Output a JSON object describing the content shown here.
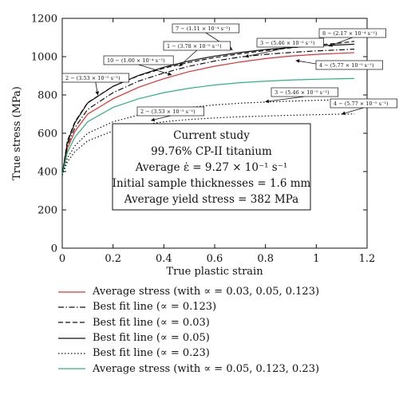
{
  "chart_data": {
    "type": "line",
    "xlabel": "True plastic strain",
    "ylabel": "True stress (MPa)",
    "xlim": [
      0,
      1.2
    ],
    "ylim": [
      0,
      1200
    ],
    "xticks": [
      "0",
      "0.2",
      "0.4",
      "0.6",
      "0.8",
      "1",
      "1.2"
    ],
    "yticks": [
      "0",
      "200",
      "400",
      "600",
      "800",
      "1000",
      "1200"
    ],
    "series": [
      {
        "name": "Average stress (with ∝ = 0.03, 0.05, 0.123)",
        "color": "#e03030",
        "dash": "solid",
        "x": [
          0,
          0.02,
          0.05,
          0.1,
          0.2,
          0.3,
          0.4,
          0.5,
          0.6,
          0.7,
          0.8,
          0.9,
          1.0,
          1.1,
          1.15
        ],
        "y": [
          382,
          520,
          610,
          700,
          780,
          840,
          885,
          922,
          950,
          972,
          990,
          1003,
          1012,
          1018,
          1021
        ]
      },
      {
        "name": "Best fit line (∝ = 0.123)",
        "color": "#111111",
        "dash": "dashdot",
        "x": [
          0,
          0.02,
          0.05,
          0.1,
          0.2,
          0.3,
          0.4,
          0.5,
          0.6,
          0.7,
          0.8,
          0.9,
          1.0,
          1.1,
          1.15
        ],
        "y": [
          382,
          535,
          630,
          725,
          812,
          872,
          915,
          950,
          977,
          998,
          1012,
          1022,
          1030,
          1036,
          1039
        ]
      },
      {
        "name": "Best fit line (∝ = 0.03)",
        "color": "#111111",
        "dash": "dashed",
        "x": [
          0,
          0.02,
          0.05,
          0.1,
          0.2,
          0.3,
          0.4,
          0.5,
          0.6,
          0.7,
          0.8,
          0.9,
          1.0,
          1.1,
          1.15
        ],
        "y": [
          382,
          560,
          660,
          760,
          845,
          900,
          940,
          970,
          995,
          1015,
          1032,
          1046,
          1060,
          1072,
          1080
        ]
      },
      {
        "name": "Best fit line (∝ = 0.05)",
        "color": "#111111",
        "dash": "solid",
        "x": [
          0,
          0.02,
          0.05,
          0.1,
          0.2,
          0.3,
          0.4,
          0.5,
          0.6,
          0.7,
          0.8,
          0.9,
          1.0,
          1.1,
          1.15
        ],
        "y": [
          382,
          550,
          655,
          758,
          845,
          902,
          945,
          978,
          1003,
          1022,
          1037,
          1048,
          1056,
          1062,
          1065
        ]
      },
      {
        "name": "Best fit line (∝ = 0.23)",
        "color": "#111111",
        "dash": "dotted",
        "x": [
          0,
          0.02,
          0.05,
          0.1,
          0.2,
          0.3,
          0.4,
          0.5,
          0.6,
          0.7,
          0.8,
          0.9,
          1.0,
          1.1,
          1.15
        ],
        "y": [
          382,
          450,
          505,
          560,
          612,
          640,
          660,
          672,
          680,
          686,
          690,
          694,
          697,
          700,
          701
        ]
      },
      {
        "name": "Average stress (with ∝ = 0.05, 0.123, 0.23)",
        "color": "#2db37a",
        "dash": "solid",
        "x": [
          0,
          0.02,
          0.05,
          0.1,
          0.2,
          0.3,
          0.4,
          0.5,
          0.6,
          0.7,
          0.8,
          0.9,
          1.0,
          1.1,
          1.15
        ],
        "y": [
          382,
          500,
          580,
          660,
          735,
          780,
          812,
          835,
          852,
          864,
          872,
          878,
          882,
          885,
          886
        ]
      },
      {
        "name": "",
        "color": "#111111",
        "dash": "dotted",
        "x": [
          0,
          0.02,
          0.05,
          0.1,
          0.2,
          0.3,
          0.4,
          0.5,
          0.6,
          0.7,
          0.8,
          0.9,
          1.0,
          1.1,
          1.15
        ],
        "y": [
          382,
          470,
          535,
          600,
          660,
          695,
          718,
          735,
          748,
          757,
          763,
          768,
          772,
          775,
          776
        ]
      }
    ],
    "annotations": [
      {
        "text": "7 − (1.11 × 10⁻⁴ s⁻¹)",
        "x": 0.67,
        "y": 1035
      },
      {
        "text": "8 − (2.17 × 10⁻⁴ s⁻¹)",
        "x": 1.05,
        "y": 1055
      },
      {
        "text": "1 − (3.78 × 10⁻⁵ s⁻¹)",
        "x": 0.46,
        "y": 950
      },
      {
        "text": "3 − (5.46 × 10⁻⁵ s⁻¹)",
        "x": 0.72,
        "y": 1000
      },
      {
        "text": "10 − (1.00 × 10⁻⁴ s⁻¹)",
        "x": 0.43,
        "y": 905
      },
      {
        "text": "4 − (5.77 × 10⁻⁵ s⁻¹)",
        "x": 0.92,
        "y": 980
      },
      {
        "text": "2 − (3.53 × 10⁻⁵ s⁻¹)",
        "x": 0.14,
        "y": 800
      },
      {
        "text": "3 − (5.46 × 10⁻⁵ s⁻¹)",
        "x": 0.8,
        "y": 765
      },
      {
        "text": "4 − (5.77 × 10⁻⁵ s⁻¹)",
        "x": 1.1,
        "y": 700
      },
      {
        "text": "2 − (3.53 × 10⁻⁵ s⁻¹)",
        "x": 0.35,
        "y": 667
      }
    ],
    "info_box": [
      "Current study",
      "99.76% CP-II titanium",
      "Average ε̇ = 9.27 × 10⁻¹ s⁻¹",
      "Initial sample thicknesses = 1.6 mm",
      "Average yield stress = 382 MPa"
    ],
    "legend_position": "bottom"
  }
}
